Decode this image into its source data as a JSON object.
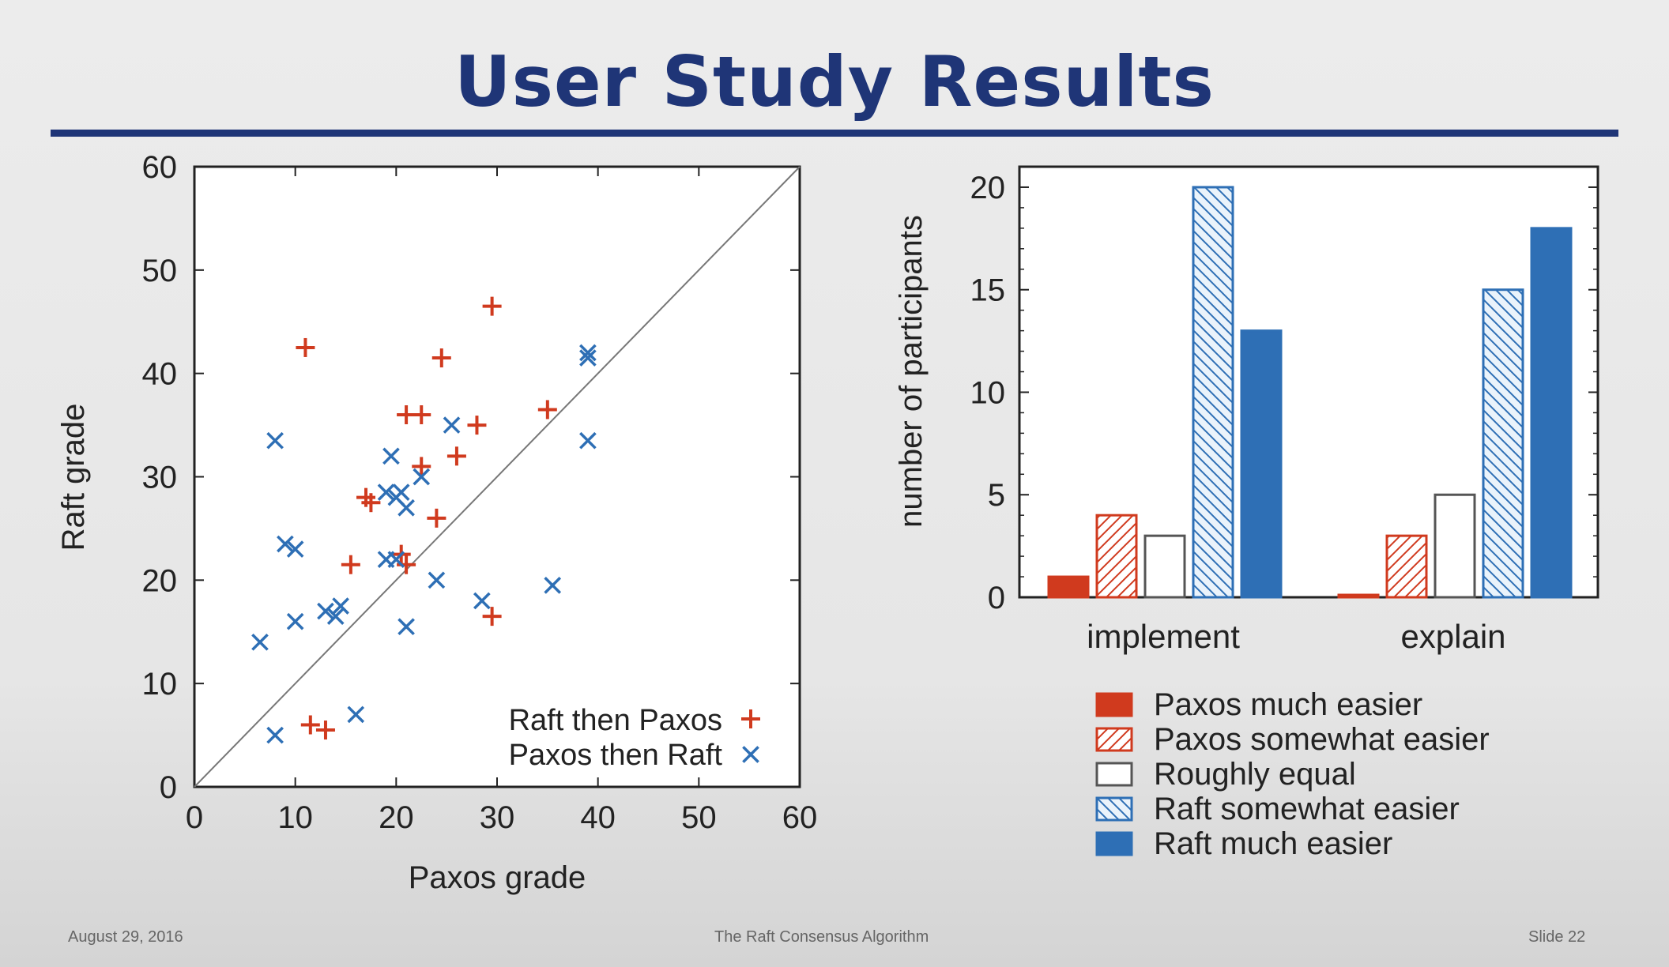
{
  "slide": {
    "title": "User Study Results",
    "footer_left": "August 29, 2016",
    "footer_center": "The Raft Consensus Algorithm",
    "footer_right": "Slide 22"
  },
  "colors": {
    "title": "#1f3577",
    "paxos_red": "#d03a1e",
    "raft_blue": "#2e6fb5"
  },
  "chart_data": [
    {
      "type": "scatter",
      "xlabel": "Paxos grade",
      "ylabel": "Raft grade",
      "xlim": [
        0,
        60
      ],
      "ylim": [
        0,
        60
      ],
      "xticks": [
        "0",
        "10",
        "20",
        "30",
        "40",
        "50",
        "60"
      ],
      "yticks": [
        "0",
        "10",
        "20",
        "30",
        "40",
        "50",
        "60"
      ],
      "diagonal": true,
      "legend_position": "bottom-right",
      "series": [
        {
          "name": "Raft then Paxos",
          "marker": "plus",
          "color": "#d03a1e",
          "points": [
            [
              11,
              42.5
            ],
            [
              29.5,
              46.5
            ],
            [
              24.5,
              41.5
            ],
            [
              21,
              36
            ],
            [
              22.5,
              36
            ],
            [
              35,
              36.5
            ],
            [
              28,
              35
            ],
            [
              26,
              32
            ],
            [
              22.5,
              31
            ],
            [
              17,
              28
            ],
            [
              17.5,
              27.5
            ],
            [
              24,
              26
            ],
            [
              15.5,
              21.5
            ],
            [
              20.5,
              22.5
            ],
            [
              21,
              21.5
            ],
            [
              29.5,
              16.5
            ],
            [
              11.5,
              6
            ],
            [
              13,
              5.5
            ]
          ]
        },
        {
          "name": "Paxos then Raft",
          "marker": "x",
          "color": "#2e6fb5",
          "points": [
            [
              39,
              42
            ],
            [
              39,
              41.5
            ],
            [
              8,
              33.5
            ],
            [
              39,
              33.5
            ],
            [
              25.5,
              35
            ],
            [
              19.5,
              32
            ],
            [
              22.5,
              30
            ],
            [
              19,
              28.5
            ],
            [
              20.5,
              28.5
            ],
            [
              20,
              28
            ],
            [
              21,
              27
            ],
            [
              9,
              23.5
            ],
            [
              10,
              23
            ],
            [
              19,
              22
            ],
            [
              20,
              22
            ],
            [
              24,
              20
            ],
            [
              35.5,
              19.5
            ],
            [
              28.5,
              18
            ],
            [
              14.5,
              17.5
            ],
            [
              13,
              17
            ],
            [
              14,
              16.5
            ],
            [
              10,
              16
            ],
            [
              21,
              15.5
            ],
            [
              6.5,
              14
            ],
            [
              16,
              7
            ],
            [
              8,
              5
            ]
          ]
        }
      ]
    },
    {
      "type": "bar",
      "ylabel": "number of participants",
      "ylim": [
        0,
        21
      ],
      "yticks": [
        "0",
        "5",
        "10",
        "15",
        "20"
      ],
      "categories": [
        "implement",
        "explain"
      ],
      "legend_position": "bottom",
      "series": [
        {
          "name": "Paxos much easier",
          "style": "solid",
          "color": "#d03a1e",
          "values": [
            1,
            0
          ]
        },
        {
          "name": "Paxos somewhat easier",
          "style": "hatch",
          "color": "#d03a1e",
          "values": [
            4,
            3
          ]
        },
        {
          "name": "Roughly equal",
          "style": "empty",
          "color": "#555555",
          "values": [
            3,
            5
          ]
        },
        {
          "name": "Raft somewhat easier",
          "style": "hatch-back",
          "color": "#2e6fb5",
          "values": [
            20,
            15
          ]
        },
        {
          "name": "Raft much easier",
          "style": "solid",
          "color": "#2e6fb5",
          "values": [
            13,
            18
          ]
        }
      ]
    }
  ]
}
